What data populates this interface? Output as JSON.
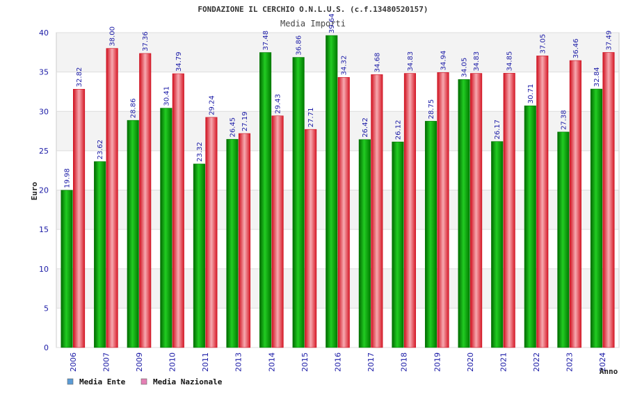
{
  "chart_data": {
    "type": "bar",
    "title": "FONDAZIONE IL CERCHIO O.N.L.U.S. (c.f.13480520157)",
    "subtitle": "Media Importi",
    "xlabel": "Anno",
    "ylabel": "Euro",
    "ylim": [
      0,
      40
    ],
    "yticks": [
      0,
      5,
      10,
      15,
      20,
      25,
      30,
      35,
      40
    ],
    "grid": true,
    "legend_position": "bottom-left",
    "categories": [
      "2006",
      "2007",
      "2009",
      "2010",
      "2011",
      "2013",
      "2014",
      "2015",
      "2016",
      "2017",
      "2018",
      "2019",
      "2020",
      "2021",
      "2022",
      "2023",
      "2024"
    ],
    "series": [
      {
        "name": "Media Ente",
        "color": "#00aa00",
        "legend_color": "#5b9bd5",
        "values": [
          19.98,
          23.62,
          28.86,
          30.41,
          23.32,
          26.45,
          37.48,
          36.86,
          39.64,
          26.42,
          26.12,
          28.75,
          34.05,
          26.17,
          30.71,
          27.38,
          32.84
        ]
      },
      {
        "name": "Media Nazionale",
        "color": "#e8303a",
        "legend_color": "#e47fb4",
        "values": [
          32.82,
          38.0,
          37.36,
          34.79,
          29.24,
          27.19,
          29.43,
          27.71,
          34.32,
          34.68,
          34.83,
          34.94,
          34.83,
          34.85,
          37.05,
          36.46,
          37.49
        ]
      }
    ]
  }
}
